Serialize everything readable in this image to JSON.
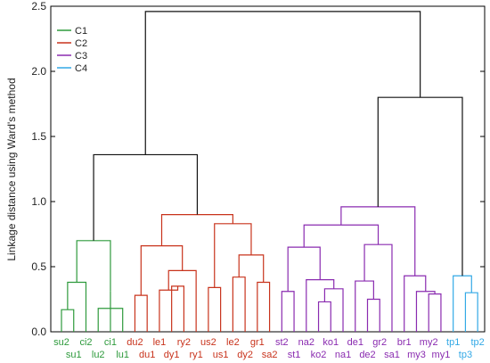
{
  "chart_data": {
    "type": "dendrogram",
    "ylabel": "Linkage distance using Ward's method",
    "ylim": [
      0,
      2.5
    ],
    "yticks": [
      "0.0",
      "0.5",
      "1.0",
      "1.5",
      "2.0",
      "2.5"
    ],
    "grid": false,
    "legend_placement": "top-left",
    "clusters": [
      {
        "name": "C1",
        "color": "#2e9a3c"
      },
      {
        "name": "C2",
        "color": "#c8331c"
      },
      {
        "name": "C3",
        "color": "#8a2bb0"
      },
      {
        "name": "C4",
        "color": "#33a9e6"
      }
    ],
    "root_color": "#111111",
    "leaves": [
      {
        "label": "su2",
        "cluster": "C1",
        "row": 0
      },
      {
        "label": "su1",
        "cluster": "C1",
        "row": 1
      },
      {
        "label": "ci2",
        "cluster": "C1",
        "row": 0
      },
      {
        "label": "lu2",
        "cluster": "C1",
        "row": 1
      },
      {
        "label": "ci1",
        "cluster": "C1",
        "row": 0
      },
      {
        "label": "lu1",
        "cluster": "C1",
        "row": 1
      },
      {
        "label": "du2",
        "cluster": "C2",
        "row": 0
      },
      {
        "label": "du1",
        "cluster": "C2",
        "row": 1
      },
      {
        "label": "le1",
        "cluster": "C2",
        "row": 0
      },
      {
        "label": "dy1",
        "cluster": "C2",
        "row": 1
      },
      {
        "label": "ry2",
        "cluster": "C2",
        "row": 0
      },
      {
        "label": "ry1",
        "cluster": "C2",
        "row": 1
      },
      {
        "label": "us2",
        "cluster": "C2",
        "row": 0
      },
      {
        "label": "us1",
        "cluster": "C2",
        "row": 1
      },
      {
        "label": "le2",
        "cluster": "C2",
        "row": 0
      },
      {
        "label": "dy2",
        "cluster": "C2",
        "row": 1
      },
      {
        "label": "gr1",
        "cluster": "C2",
        "row": 0
      },
      {
        "label": "sa2",
        "cluster": "C2",
        "row": 1
      },
      {
        "label": "st2",
        "cluster": "C3",
        "row": 0
      },
      {
        "label": "st1",
        "cluster": "C3",
        "row": 1
      },
      {
        "label": "na2",
        "cluster": "C3",
        "row": 0
      },
      {
        "label": "ko2",
        "cluster": "C3",
        "row": 1
      },
      {
        "label": "ko1",
        "cluster": "C3",
        "row": 0
      },
      {
        "label": "na1",
        "cluster": "C3",
        "row": 1
      },
      {
        "label": "de1",
        "cluster": "C3",
        "row": 0
      },
      {
        "label": "de2",
        "cluster": "C3",
        "row": 1
      },
      {
        "label": "gr2",
        "cluster": "C3",
        "row": 0
      },
      {
        "label": "sa1",
        "cluster": "C3",
        "row": 1
      },
      {
        "label": "br1",
        "cluster": "C3",
        "row": 0
      },
      {
        "label": "my3",
        "cluster": "C3",
        "row": 1
      },
      {
        "label": "my2",
        "cluster": "C3",
        "row": 0
      },
      {
        "label": "my1",
        "cluster": "C3",
        "row": 1
      },
      {
        "label": "tp1",
        "cluster": "C4",
        "row": 0
      },
      {
        "label": "tp3",
        "cluster": "C4",
        "row": 1
      },
      {
        "label": "tp2",
        "cluster": "C4",
        "row": 0
      }
    ],
    "merges": [
      {
        "id": "a1",
        "left": "su2",
        "right": "su1",
        "height": 0.17,
        "cluster": "C1"
      },
      {
        "id": "a2",
        "left": "a1",
        "right": "ci2",
        "height": 0.38,
        "cluster": "C1"
      },
      {
        "id": "a3",
        "left": "lu2",
        "right": "lu1",
        "height": 0.18,
        "cluster": "C1"
      },
      {
        "id": "a4",
        "left": "ci1",
        "right": "a3",
        "height": 0.31,
        "cluster": "C1"
      },
      {
        "id": "A",
        "left": "a2",
        "right": "a4",
        "height": 0.7,
        "cluster": "C1"
      },
      {
        "id": "b1",
        "left": "du2",
        "right": "du1",
        "height": 0.28,
        "cluster": "C2"
      },
      {
        "id": "b2",
        "left": "dy1",
        "right": "ry2",
        "height": 0.35,
        "cluster": "C2"
      },
      {
        "id": "b3",
        "left": "le1",
        "right": "b2",
        "height": 0.32,
        "cluster": "C2"
      },
      {
        "id": "b4",
        "left": "b3",
        "right": "ry1",
        "height": 0.47,
        "cluster": "C2"
      },
      {
        "id": "b5",
        "left": "b1",
        "right": "b4",
        "height": 0.66,
        "cluster": "C2"
      },
      {
        "id": "b6",
        "left": "us2",
        "right": "us1",
        "height": 0.34,
        "cluster": "C2"
      },
      {
        "id": "b7",
        "left": "le2",
        "right": "dy2",
        "height": 0.42,
        "cluster": "C2"
      },
      {
        "id": "b8",
        "left": "gr1",
        "right": "sa2",
        "height": 0.38,
        "cluster": "C2"
      },
      {
        "id": "b9",
        "left": "b7",
        "right": "b8",
        "height": 0.59,
        "cluster": "C2"
      },
      {
        "id": "b10",
        "left": "b6",
        "right": "b9",
        "height": 0.83,
        "cluster": "C2"
      },
      {
        "id": "B",
        "left": "b5",
        "right": "b10",
        "height": 0.9,
        "cluster": "C2"
      },
      {
        "id": "AB",
        "left": "A",
        "right": "B",
        "height": 1.36,
        "cluster": "C1C2"
      },
      {
        "id": "c1",
        "left": "st2",
        "right": "st1",
        "height": 0.31,
        "cluster": "C3"
      },
      {
        "id": "c2",
        "left": "ko2",
        "right": "ko1",
        "height": 0.23,
        "cluster": "C3"
      },
      {
        "id": "c3",
        "left": "c2",
        "right": "na1",
        "height": 0.33,
        "cluster": "C3"
      },
      {
        "id": "c4",
        "left": "na2",
        "right": "c3",
        "height": 0.4,
        "cluster": "C3"
      },
      {
        "id": "c5",
        "left": "c1",
        "right": "c4",
        "height": 0.65,
        "cluster": "C3"
      },
      {
        "id": "c6",
        "left": "de2",
        "right": "gr2",
        "height": 0.25,
        "cluster": "C3"
      },
      {
        "id": "c7",
        "left": "de1",
        "right": "c6",
        "height": 0.39,
        "cluster": "C3"
      },
      {
        "id": "c8",
        "left": "c7",
        "right": "sa1",
        "height": 0.67,
        "cluster": "C3"
      },
      {
        "id": "c9",
        "left": "c5",
        "right": "c8",
        "height": 0.82,
        "cluster": "C3"
      },
      {
        "id": "c10",
        "left": "my2",
        "right": "my1",
        "height": 0.29,
        "cluster": "C3"
      },
      {
        "id": "c11",
        "left": "my3",
        "right": "c10",
        "height": 0.31,
        "cluster": "C3"
      },
      {
        "id": "c12",
        "left": "br1",
        "right": "c11",
        "height": 0.43,
        "cluster": "C3"
      },
      {
        "id": "C",
        "left": "c9",
        "right": "c12",
        "height": 0.96,
        "cluster": "C3"
      },
      {
        "id": "d1",
        "left": "tp3",
        "right": "tp2",
        "height": 0.3,
        "cluster": "C4"
      },
      {
        "id": "D",
        "left": "tp1",
        "right": "d1",
        "height": 0.43,
        "cluster": "C4"
      },
      {
        "id": "CD",
        "left": "C",
        "right": "D",
        "height": 1.8,
        "cluster": "C3C4"
      },
      {
        "id": "root",
        "left": "AB",
        "right": "CD",
        "height": 2.46,
        "cluster": "root"
      }
    ]
  }
}
